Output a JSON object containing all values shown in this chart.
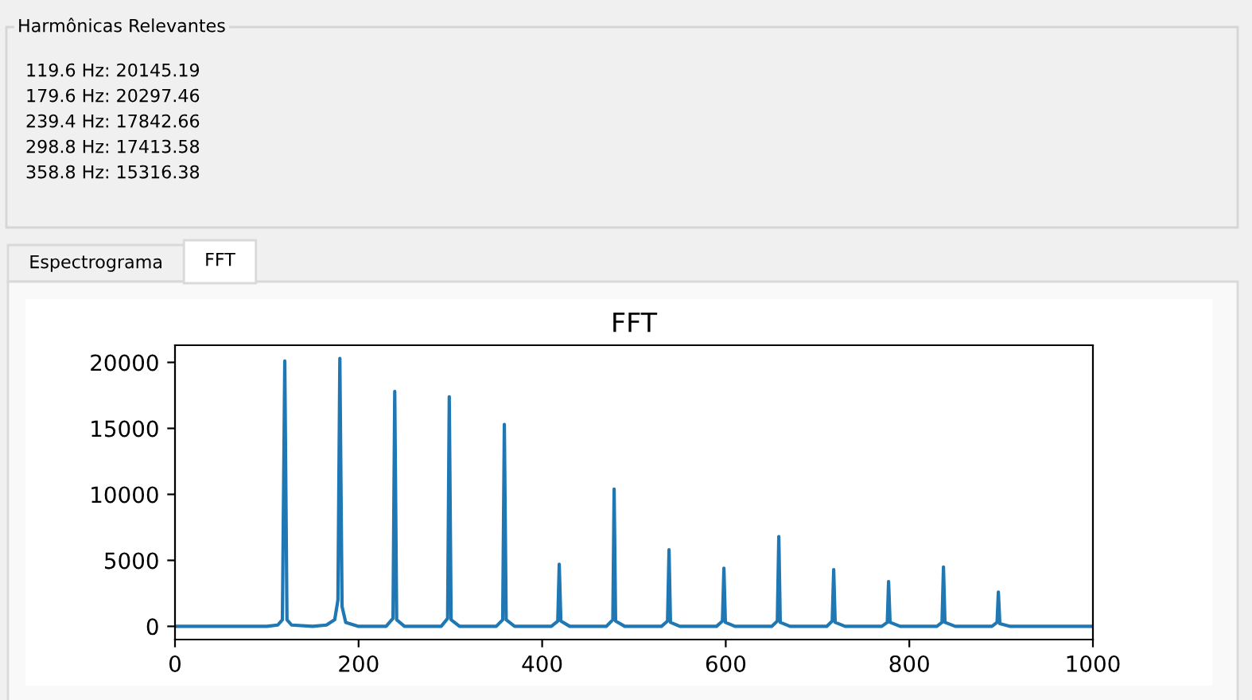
{
  "chart_data": [
    {
      "type": "other",
      "title": "Harmônicas Relevantes",
      "annotations": [
        "119.6 Hz: 20145.19",
        "179.6 Hz: 20297.46",
        "239.4 Hz: 17842.66",
        "298.8 Hz: 17413.58",
        "358.8 Hz: 15316.38"
      ]
    },
    {
      "type": "line",
      "title": "FFT",
      "annotations": [
        "Espectrograma",
        "FFT"
      ],
      "x": [
        0,
        100,
        112,
        117,
        119.6,
        122,
        127,
        150,
        165,
        174,
        177.5,
        179.6,
        182,
        186,
        200,
        230,
        237.5,
        239.4,
        241.5,
        250,
        290,
        297,
        298.8,
        300.8,
        310,
        350,
        357,
        358.8,
        360.8,
        370,
        410,
        417,
        418.6,
        420.4,
        430,
        470,
        477,
        478.4,
        480,
        490,
        530,
        536.6,
        538.2,
        539.8,
        550,
        590,
        596.4,
        598,
        599.6,
        610,
        650,
        656.2,
        657.8,
        659.4,
        670,
        710,
        716,
        717.6,
        719.2,
        730,
        770,
        776,
        777.4,
        779,
        790,
        830,
        835.6,
        837.2,
        838.8,
        850,
        890,
        895.6,
        897,
        898.6,
        910,
        1000
      ],
      "series": [
        {
          "color": "#1f77b4",
          "values": [
            0,
            0,
            100,
            500,
            20100,
            500,
            100,
            0,
            100,
            500,
            2000,
            20300,
            1500,
            300,
            0,
            0,
            600,
            17800,
            500,
            0,
            0,
            600,
            17400,
            500,
            0,
            0,
            500,
            15300,
            500,
            0,
            0,
            400,
            4700,
            400,
            0,
            0,
            500,
            10400,
            400,
            0,
            0,
            400,
            5800,
            300,
            0,
            0,
            400,
            4400,
            300,
            0,
            0,
            400,
            6800,
            300,
            0,
            0,
            400,
            4300,
            300,
            0,
            0,
            300,
            3400,
            300,
            0,
            0,
            300,
            4500,
            300,
            0,
            0,
            300,
            2600,
            200,
            0,
            0
          ]
        }
      ],
      "xlim": [
        0,
        1000
      ],
      "xticks": [
        0,
        200,
        400,
        600,
        800,
        1000
      ],
      "ylim": [
        -1000,
        21300
      ],
      "yticks": [
        0,
        5000,
        10000,
        15000,
        20000
      ]
    }
  ]
}
